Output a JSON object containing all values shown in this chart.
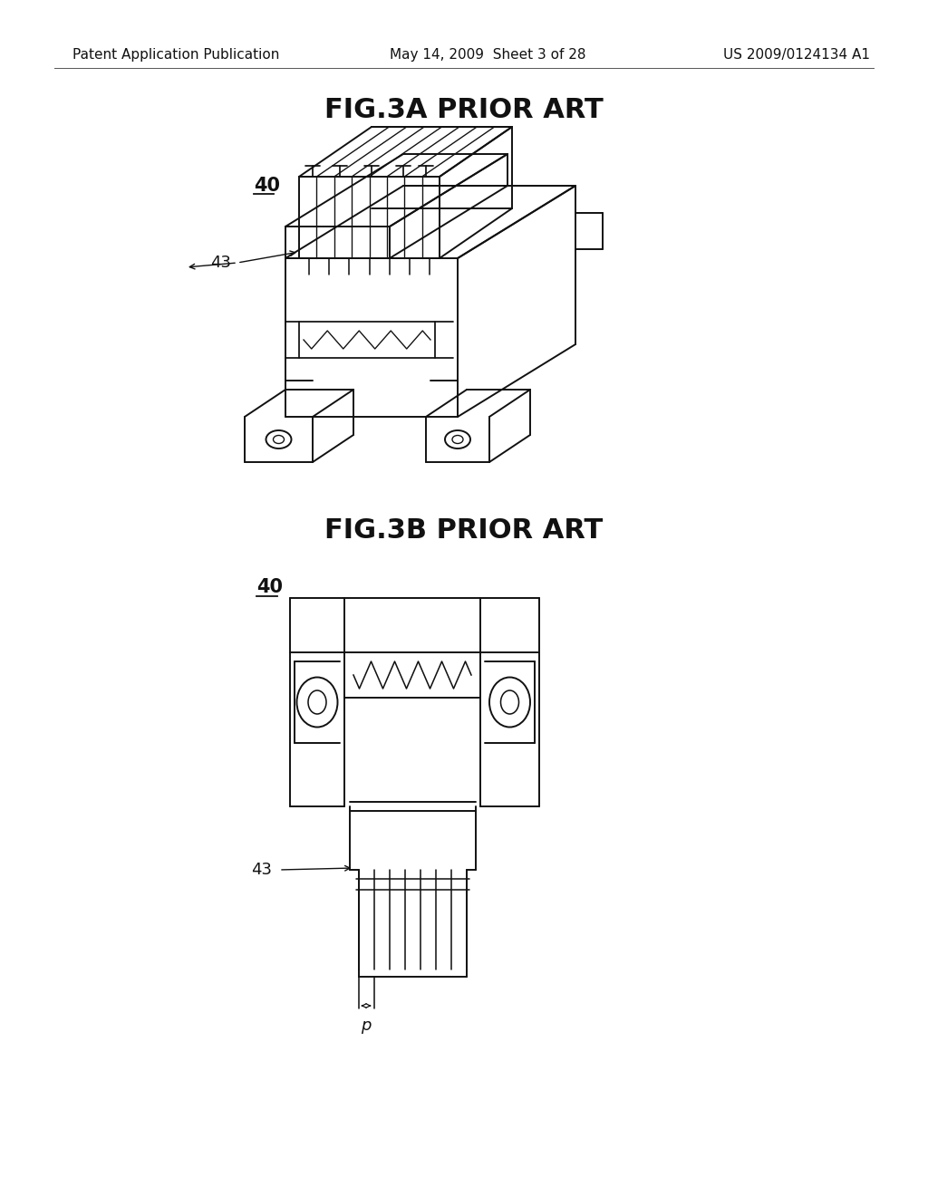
{
  "bg_color": "#ffffff",
  "header_left": "Patent Application Publication",
  "header_center": "May 14, 2009  Sheet 3 of 28",
  "header_right": "US 2009/0124134 A1",
  "header_fontsize": 11,
  "fig3a_title": "FIG.3A PRIOR ART",
  "fig3b_title": "FIG.3B PRIOR ART",
  "title_fontsize": 22,
  "label_fontsize": 13,
  "label_40_3a": "40",
  "label_43_3a": "43",
  "label_40_3b": "40",
  "label_43_3b": "43",
  "label_p": "p"
}
